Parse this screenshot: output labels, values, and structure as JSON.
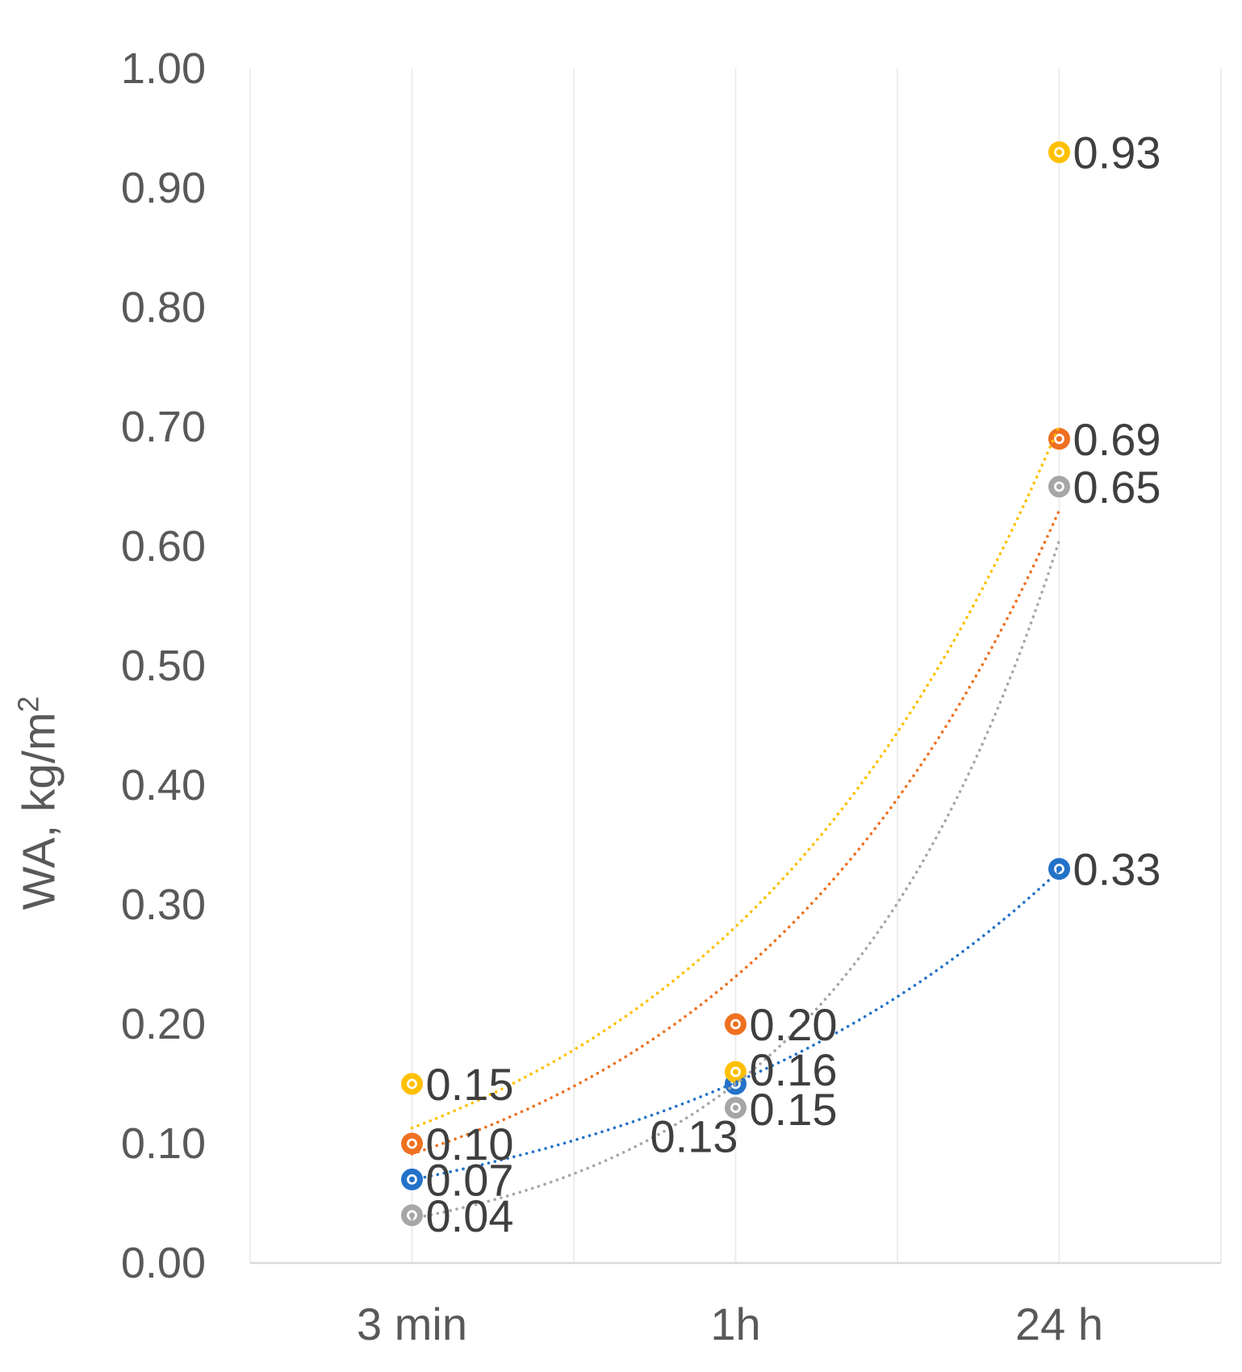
{
  "chart_data": {
    "type": "scatter",
    "title": "",
    "ylabel": {
      "text": "WA, kg/m",
      "superscript": "2"
    },
    "xlabel": "",
    "categories": [
      "3 min",
      "1h",
      "24 h"
    ],
    "yticks": [
      "0.00",
      "0.10",
      "0.20",
      "0.30",
      "0.40",
      "0.50",
      "0.60",
      "0.70",
      "0.80",
      "0.90",
      "1.00"
    ],
    "ylim": [
      0.0,
      1.0
    ],
    "grid": "vertical-only",
    "legend": "none",
    "line_style": "dotted-exponential-trendline",
    "marker_style": "filled-circle-with-white-ring",
    "series": [
      {
        "name": "gray",
        "color": "#A6A6A6",
        "values": [
          0.04,
          0.13,
          0.65
        ],
        "labels": [
          "0.04",
          "0.13",
          "0.65"
        ],
        "label_offsets": [
          [
            0,
            0
          ],
          [
            -123,
            35
          ],
          [
            0,
            0
          ]
        ]
      },
      {
        "name": "orange",
        "color": "#EF7020",
        "values": [
          0.1,
          0.2,
          0.69
        ],
        "labels": [
          "0.10",
          "0.20",
          "0.69"
        ],
        "label_offsets": [
          [
            0,
            0
          ],
          [
            0,
            0
          ],
          [
            0,
            0
          ]
        ]
      },
      {
        "name": "blue",
        "color": "#2372C8",
        "values": [
          0.07,
          0.15,
          0.33
        ],
        "labels": [
          "0.07",
          "0.15",
          "0.33"
        ],
        "label_offsets": [
          [
            0,
            0
          ],
          [
            0,
            31
          ],
          [
            0,
            0
          ]
        ]
      },
      {
        "name": "yellow",
        "color": "#FFC000",
        "values": [
          0.15,
          0.16,
          0.93
        ],
        "labels": [
          "0.15",
          "0.16",
          "0.93"
        ],
        "label_offsets": [
          [
            0,
            0
          ],
          [
            0,
            -3
          ],
          [
            0,
            0
          ]
        ]
      }
    ],
    "colors": {
      "grid": "#ECECEC",
      "axis_line": "#D9D9D9",
      "tick_text": "#595959",
      "data_label_text": "#3F3F3F"
    }
  }
}
